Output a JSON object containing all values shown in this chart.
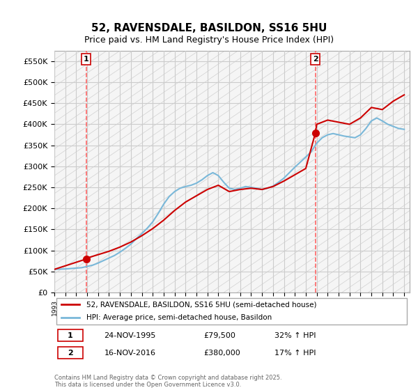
{
  "title": "52, RAVENSDALE, BASILDON, SS16 5HU",
  "subtitle": "Price paid vs. HM Land Registry's House Price Index (HPI)",
  "ylabel_ticks": [
    "£0",
    "£50K",
    "£100K",
    "£150K",
    "£200K",
    "£250K",
    "£300K",
    "£350K",
    "£400K",
    "£450K",
    "£500K",
    "£550K"
  ],
  "ytick_values": [
    0,
    50000,
    100000,
    150000,
    200000,
    250000,
    300000,
    350000,
    400000,
    450000,
    500000,
    550000
  ],
  "ylim": [
    0,
    575000
  ],
  "xlim_start": 1993,
  "xlim_end": 2025.5,
  "purchase1_year": 1995.9,
  "purchase1_price": 79500,
  "purchase1_label": "1",
  "purchase1_date": "24-NOV-1995",
  "purchase1_price_str": "£79,500",
  "purchase1_hpi": "32% ↑ HPI",
  "purchase2_year": 2016.88,
  "purchase2_price": 380000,
  "purchase2_label": "2",
  "purchase2_date": "16-NOV-2016",
  "purchase2_price_str": "£380,000",
  "purchase2_hpi": "17% ↑ HPI",
  "line1_color": "#cc0000",
  "line2_color": "#7ab8d9",
  "marker_color": "#cc0000",
  "vline_color": "#ff6666",
  "grid_color": "#cccccc",
  "background_color": "#ffffff",
  "legend1_label": "52, RAVENSDALE, BASILDON, SS16 5HU (semi-detached house)",
  "legend2_label": "HPI: Average price, semi-detached house, Basildon",
  "footer": "Contains HM Land Registry data © Crown copyright and database right 2025.\nThis data is licensed under the Open Government Licence v3.0.",
  "hpi_data_x": [
    1993,
    1993.5,
    1994,
    1994.5,
    1995,
    1995.5,
    1996,
    1996.5,
    1997,
    1997.5,
    1998,
    1998.5,
    1999,
    1999.5,
    2000,
    2000.5,
    2001,
    2001.5,
    2002,
    2002.5,
    2003,
    2003.5,
    2004,
    2004.5,
    2005,
    2005.5,
    2006,
    2006.5,
    2007,
    2007.5,
    2008,
    2008.5,
    2009,
    2009.5,
    2010,
    2010.5,
    2011,
    2011.5,
    2012,
    2012.5,
    2013,
    2013.5,
    2014,
    2014.5,
    2015,
    2015.5,
    2016,
    2016.5,
    2017,
    2017.5,
    2018,
    2018.5,
    2019,
    2019.5,
    2020,
    2020.5,
    2021,
    2021.5,
    2022,
    2022.5,
    2023,
    2023.5,
    2024,
    2024.5,
    2025
  ],
  "hpi_data_y": [
    55000,
    55500,
    56000,
    57000,
    58000,
    59000,
    62000,
    65000,
    70000,
    76000,
    82000,
    88000,
    96000,
    105000,
    115000,
    128000,
    140000,
    153000,
    168000,
    188000,
    210000,
    228000,
    240000,
    248000,
    252000,
    255000,
    260000,
    268000,
    278000,
    285000,
    278000,
    262000,
    248000,
    245000,
    248000,
    252000,
    250000,
    248000,
    245000,
    248000,
    253000,
    262000,
    272000,
    285000,
    298000,
    310000,
    322000,
    335000,
    355000,
    368000,
    375000,
    378000,
    375000,
    372000,
    370000,
    368000,
    375000,
    390000,
    408000,
    415000,
    408000,
    400000,
    395000,
    390000,
    388000
  ],
  "price_data_x": [
    1993,
    1995.9,
    1996,
    1997,
    1998,
    1999,
    2000,
    2001,
    2002,
    2003,
    2004,
    2005,
    2006,
    2007,
    2008,
    2009,
    2010,
    2011,
    2012,
    2013,
    2014,
    2015,
    2016,
    2016.88,
    2017,
    2018,
    2019,
    2020,
    2021,
    2022,
    2023,
    2024,
    2025
  ],
  "price_data_y": [
    55000,
    79500,
    82000,
    90000,
    98000,
    108000,
    120000,
    135000,
    152000,
    172000,
    195000,
    215000,
    230000,
    245000,
    255000,
    240000,
    245000,
    248000,
    245000,
    252000,
    265000,
    280000,
    295000,
    380000,
    400000,
    410000,
    405000,
    400000,
    415000,
    440000,
    435000,
    455000,
    470000
  ]
}
